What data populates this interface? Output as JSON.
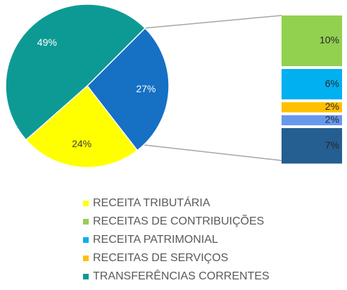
{
  "chart_data": {
    "type": "pie",
    "slices": {
      "categories": [
        "TRANSFERÊNCIAS CORRENTES",
        null,
        "RECEITA TRIBUTÁRIA"
      ],
      "values": [
        49,
        27,
        24
      ],
      "value_labels": [
        "49%",
        "27%",
        "24%"
      ],
      "colors": [
        "#0e9a94",
        "#1670c4",
        "#ffff00"
      ]
    },
    "breakdown": {
      "categories": [
        "RECEITAS DE CONTRIBUIÇÕES",
        "RECEITA PATRIMONIAL",
        "RECEITAS DE SERVIÇOS",
        null,
        null
      ],
      "values": [
        10,
        6,
        2,
        2,
        7
      ],
      "value_labels": [
        "10%",
        "6%",
        "2%",
        "2%",
        "7%"
      ],
      "colors": [
        "#92d050",
        "#00b0f0",
        "#ffc000",
        "#6699ee",
        "#255e91"
      ]
    }
  }
}
